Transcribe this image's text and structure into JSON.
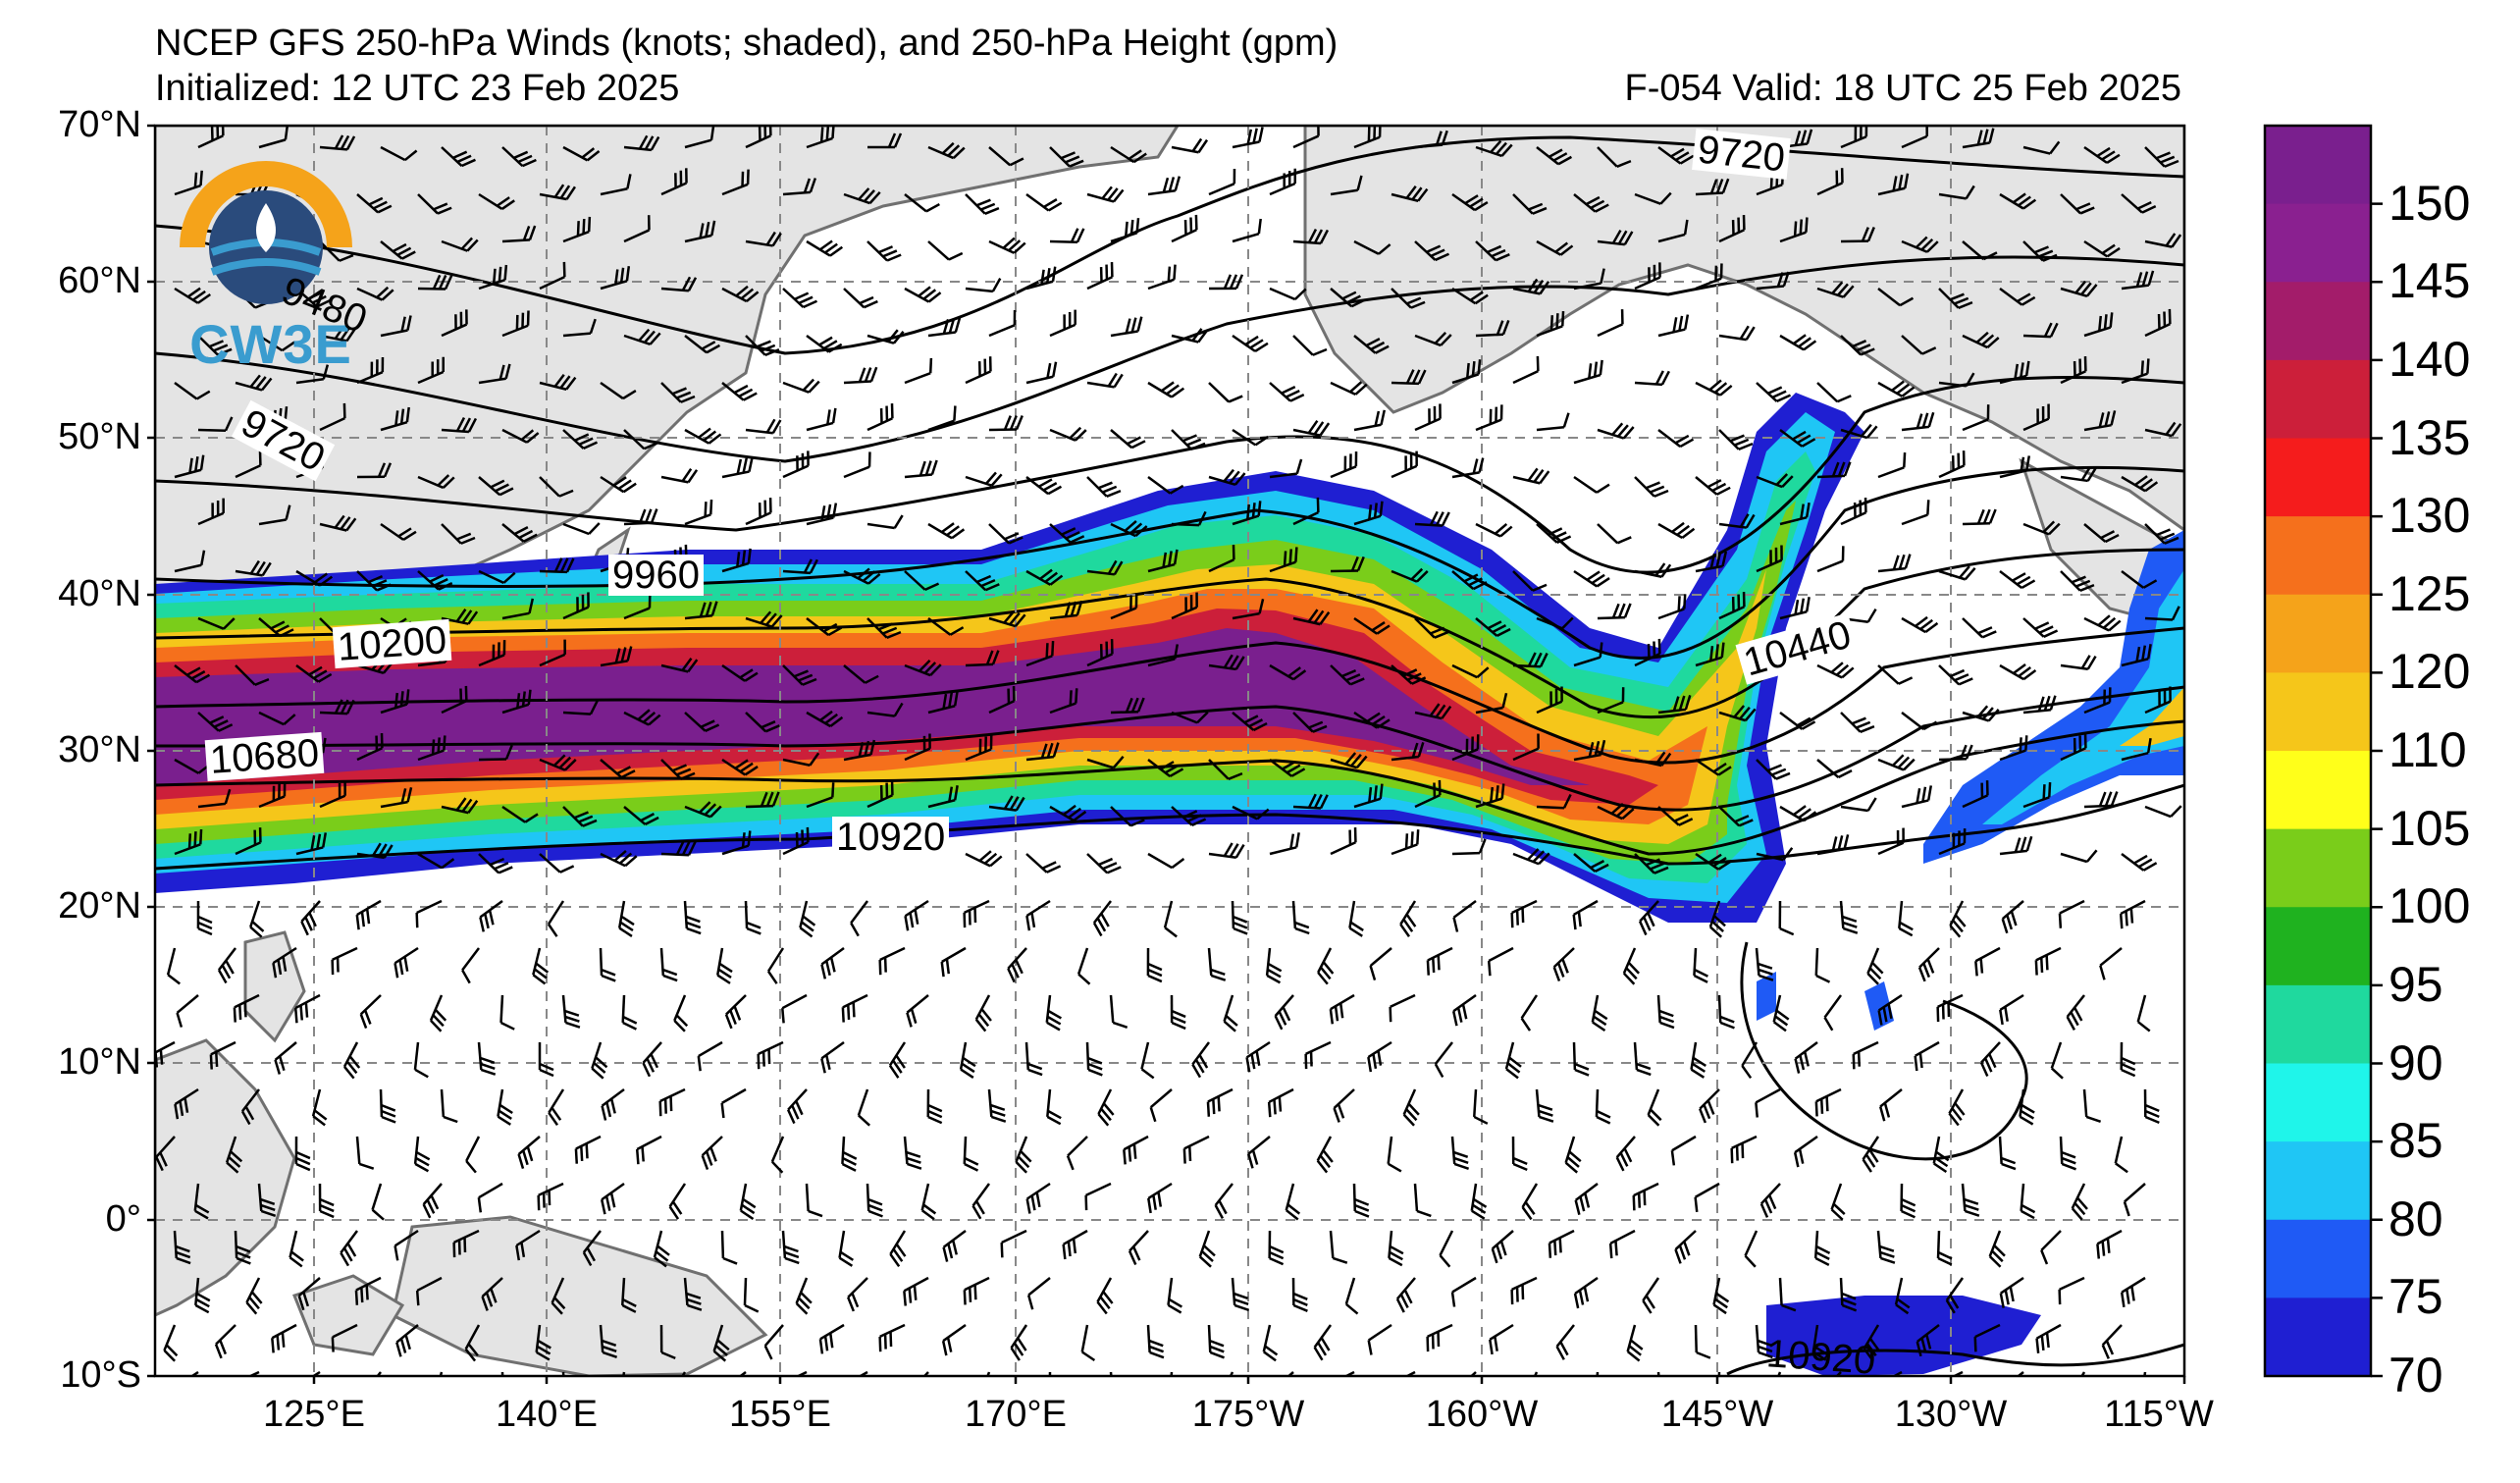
{
  "header": {
    "title": "NCEP GFS 250-hPa Winds (knots; shaded), and 250-hPa Height (gpm)",
    "initialized": "Initialized: 12 UTC 23 Feb 2025",
    "valid": "F-054  Valid: 18 UTC 25 Feb 2025"
  },
  "logo": {
    "text": "CW3E",
    "colors": {
      "orange": "#f5a31a",
      "blue": "#3a9ccf",
      "navy": "#2a4b7c"
    }
  },
  "axes": {
    "lat_labels": [
      "70°N",
      "60°N",
      "50°N",
      "40°N",
      "30°N",
      "20°N",
      "10°N",
      "0°",
      "10°S"
    ],
    "lon_labels": [
      "125°E",
      "140°E",
      "155°E",
      "170°E",
      "175°W",
      "160°W",
      "145°W",
      "130°W",
      "115°W"
    ]
  },
  "colorbar": {
    "labels": [
      "150",
      "145",
      "140",
      "135",
      "130",
      "125",
      "120",
      "110",
      "105",
      "100",
      "95",
      "90",
      "85",
      "80",
      "75",
      "70"
    ],
    "colors": [
      "#7a1f8e",
      "#8a2090",
      "#a31c6a",
      "#cc1f3a",
      "#f51c1c",
      "#f5701c",
      "#f5a31a",
      "#f5c61a",
      "#ffff1a",
      "#7acd1a",
      "#1fb21f",
      "#1fd99e",
      "#1ff5ea",
      "#1fc6f5",
      "#1f5af5",
      "#1f1fd2"
    ]
  },
  "contour_labels": [
    "9480",
    "9720",
    "9720",
    "9960",
    "10200",
    "10440",
    "10680",
    "10920",
    "10920"
  ]
}
